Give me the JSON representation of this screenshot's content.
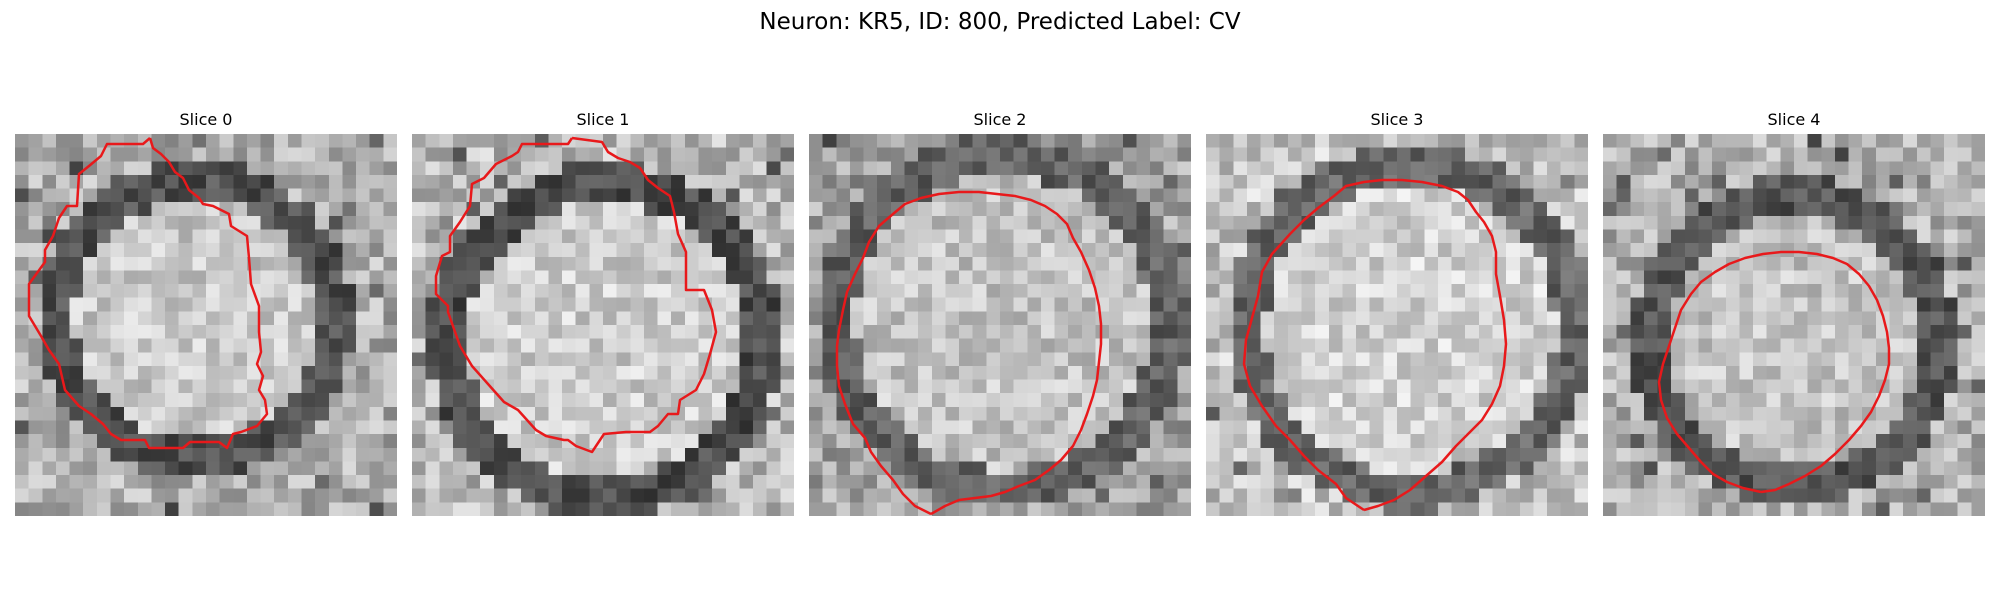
{
  "figure": {
    "title": "Neuron: KR5, ID: 800, Predicted Label: CV"
  },
  "panels": [
    {
      "title": "Slice 0"
    },
    {
      "title": "Slice 1"
    },
    {
      "title": "Slice 2"
    },
    {
      "title": "Slice 3"
    },
    {
      "title": "Slice 4"
    }
  ],
  "colors": {
    "contour": "#e8191b",
    "image_colormap": "gray"
  }
}
